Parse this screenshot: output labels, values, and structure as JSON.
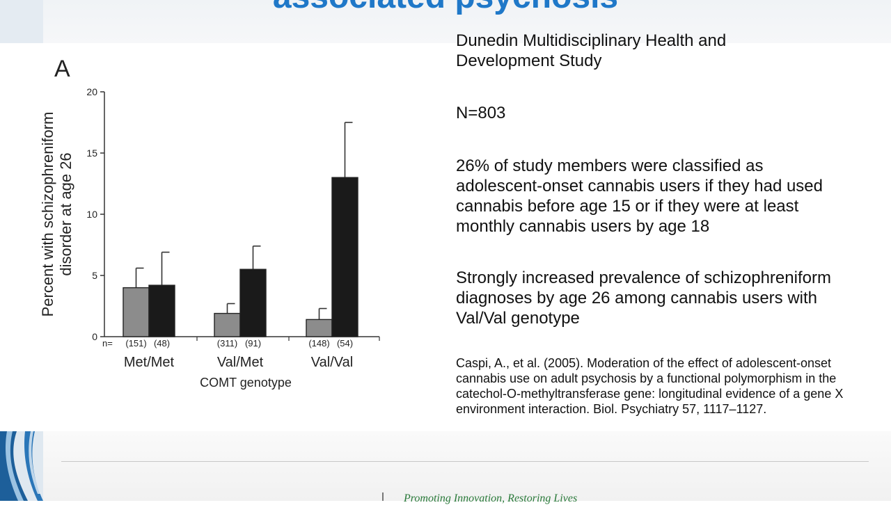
{
  "slide": {
    "title": "associated psychosis",
    "tagline": "Promoting Innovation, Restoring Lives"
  },
  "colors": {
    "title": "#1f78c8",
    "bar_nonuser": "#8c8c8c",
    "bar_user": "#1a1a1a",
    "tagline": "#2a7a3a"
  },
  "chart_data": {
    "type": "bar",
    "panel_label": "A",
    "categories": [
      "Met/Met",
      "Val/Met",
      "Val/Val"
    ],
    "n_prefix": "n=",
    "n_labels": [
      [
        "(151)",
        "(48)"
      ],
      [
        "(311)",
        "(91)"
      ],
      [
        "(148)",
        "(54)"
      ]
    ],
    "series": [
      {
        "values": [
          4.0,
          1.9,
          1.4
        ],
        "error_upper": [
          5.6,
          2.7,
          2.3
        ]
      },
      {
        "values": [
          4.2,
          5.5,
          13.0
        ],
        "error_upper": [
          6.9,
          7.4,
          17.5
        ]
      }
    ],
    "xlabel": "COMT genotype",
    "ylabel": "Percent with schizophreniform disorder at age 26",
    "yticks": [
      0,
      5,
      10,
      15,
      20
    ],
    "ylim": [
      0,
      20
    ],
    "grid": false
  },
  "text": {
    "study": "Dunedin Multidisciplinary Health and\nDevelopment Study",
    "n": "N=803",
    "users": "26% of study members were classified as adolescent-onset cannabis users if they had used cannabis before age 15 or if they were at least monthly cannabis users by age 18",
    "finding": "Strongly increased prevalence of schizophreniform diagnoses by age 26 among cannabis users with Val/Val genotype",
    "citation": "Caspi, A., et al. (2005). Moderation of the effect of adolescent-onset cannabis use on adult psychosis by a functional polymorphism in the catechol-O-methyltransferase gene: longitudinal evidence of a gene X environment interaction. Biol. Psychiatry 57, 1117–1127."
  }
}
